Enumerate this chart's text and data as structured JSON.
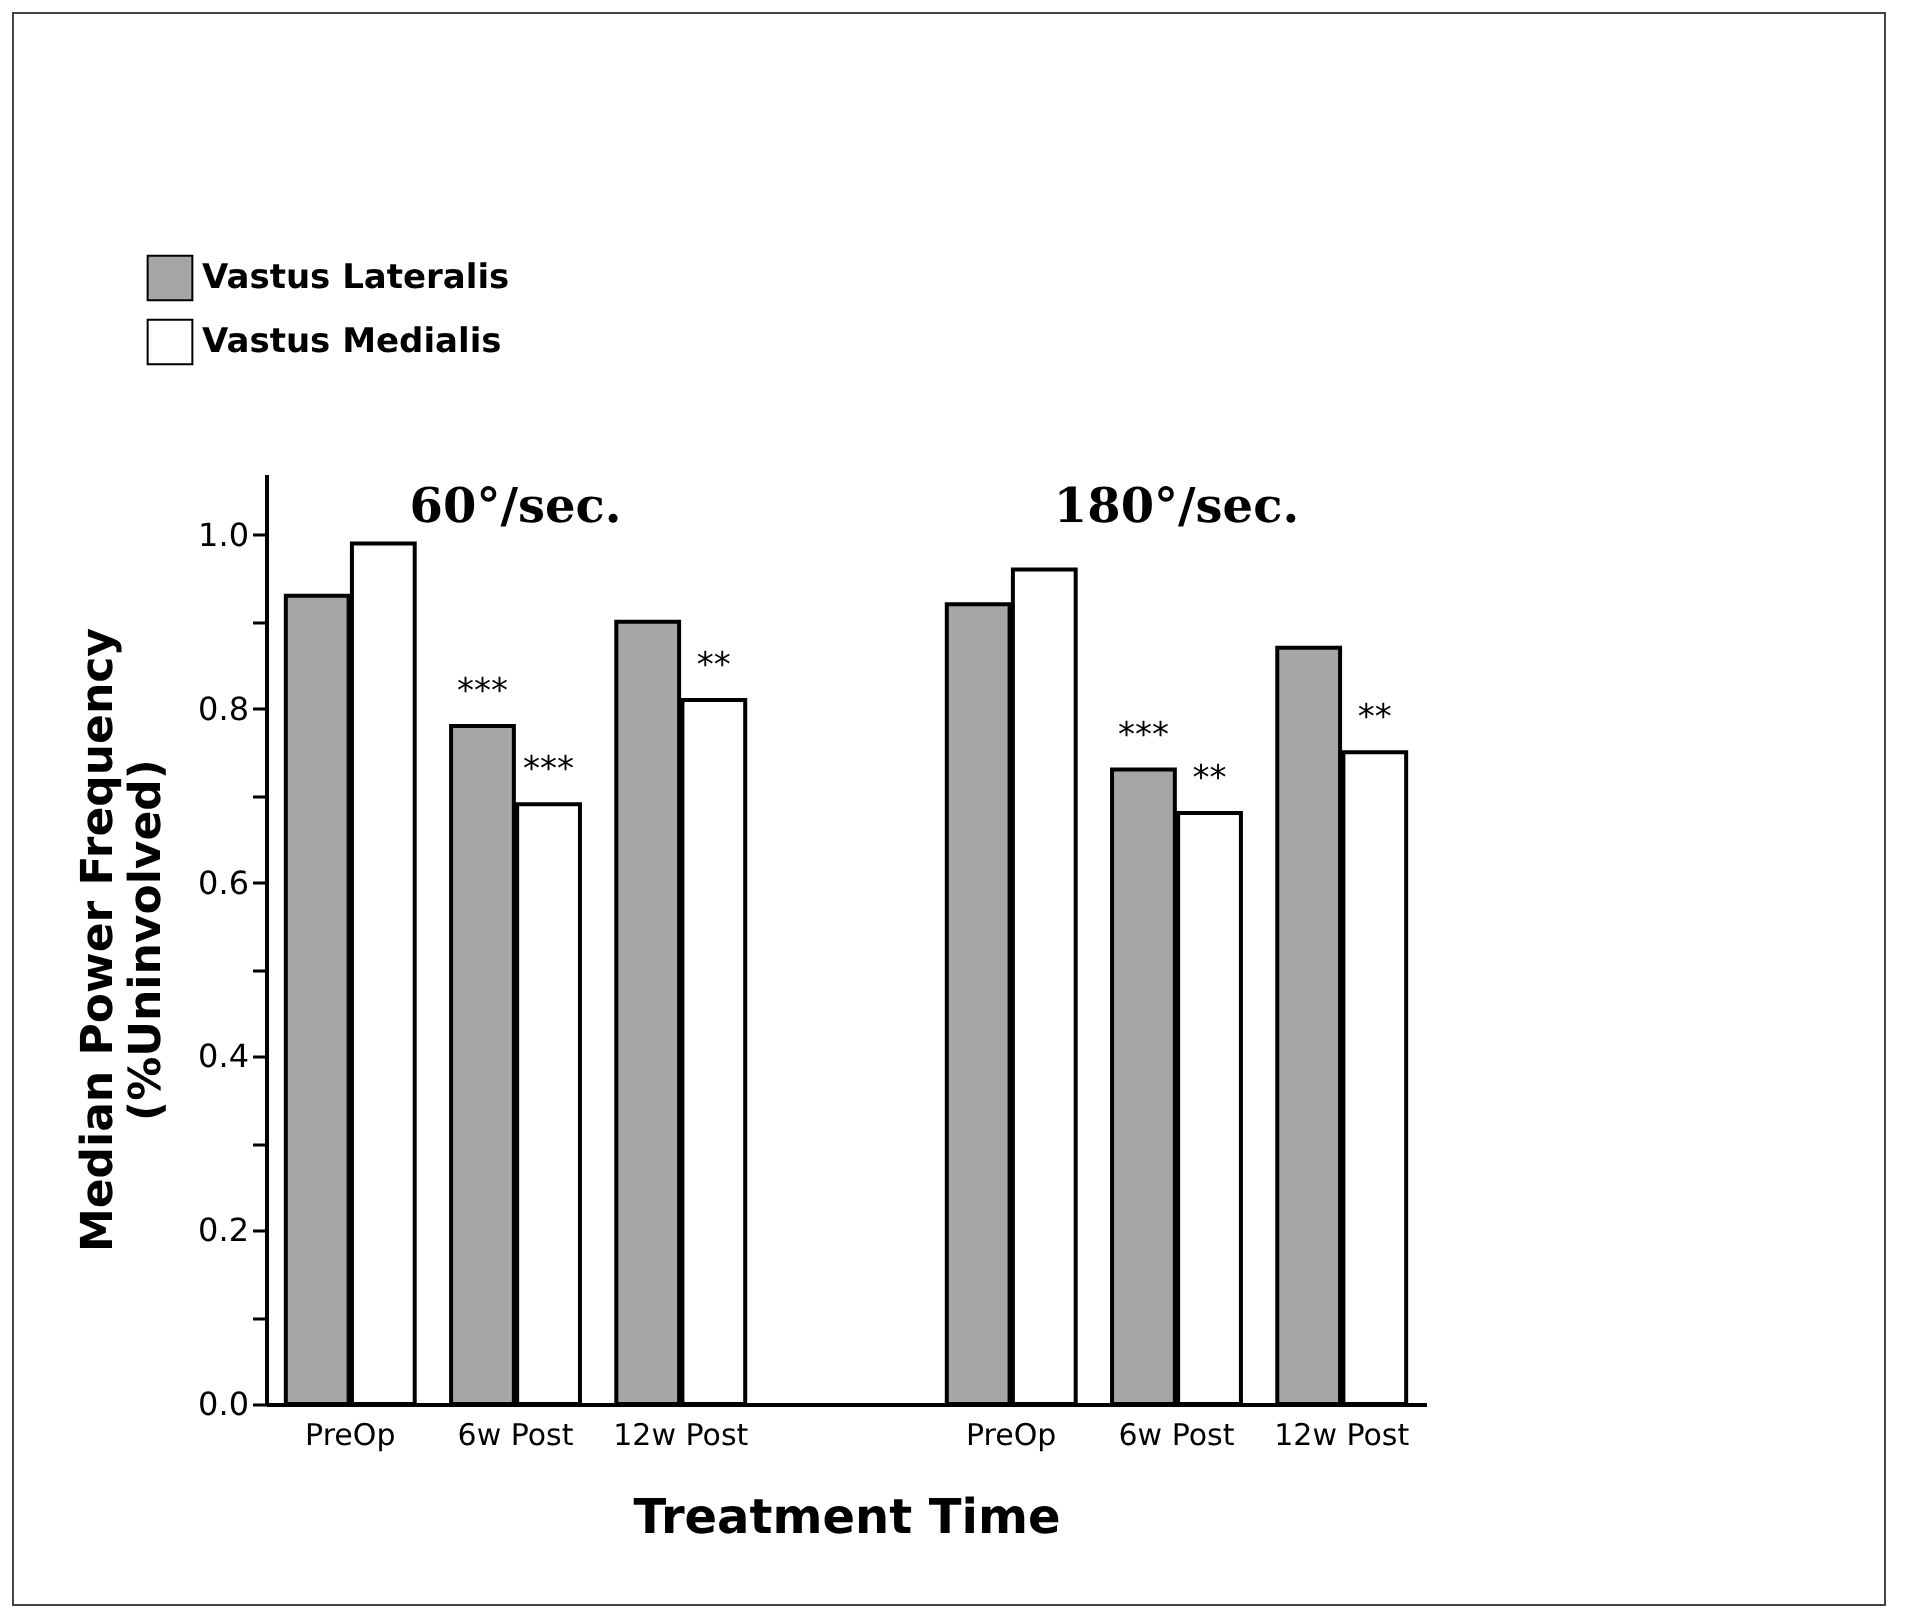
{
  "chart_data": {
    "type": "bar",
    "categories": [
      "PreOp",
      "6w Post",
      "12w Post",
      null,
      "PreOp",
      "6w Post",
      "12w Post"
    ],
    "series": [
      {
        "name": "Vastus Lateralis",
        "color": "#a6a6a6",
        "values": [
          0.93,
          0.78,
          0.9,
          null,
          0.92,
          0.73,
          0.87
        ]
      },
      {
        "name": "Vastus Medialis",
        "color": "#ffffff",
        "values": [
          0.99,
          0.69,
          0.81,
          null,
          0.96,
          0.68,
          0.75
        ]
      }
    ],
    "xlabel": "Treatment Time",
    "ylabel": "Median Power Frequency\n(%Uninvolved)",
    "ylim": [
      0,
      1.07
    ],
    "yticks": [
      {
        "value": 0,
        "label": "0.0"
      },
      {
        "value": 0.1,
        "label": null
      },
      0.2,
      {
        "value": 0.3,
        "label": null
      },
      0.4,
      {
        "value": 0.5,
        "label": null
      },
      0.6,
      {
        "value": 0.7,
        "label": null
      },
      0.8,
      {
        "value": 0.9,
        "label": null
      },
      {
        "value": 1,
        "label": "1.0"
      }
    ],
    "legend": "top left",
    "grid": false,
    "annotations": [
      "60°/sec.",
      "180°/sec.",
      {
        "text": "***",
        "x": "6w Post",
        "y": 0.78
      },
      {
        "text": "***",
        "x": "6w Post",
        "y": 0.69
      },
      {
        "text": "**",
        "x": "12w Post",
        "y": 0.81
      },
      "***",
      "**",
      "**"
    ]
  }
}
